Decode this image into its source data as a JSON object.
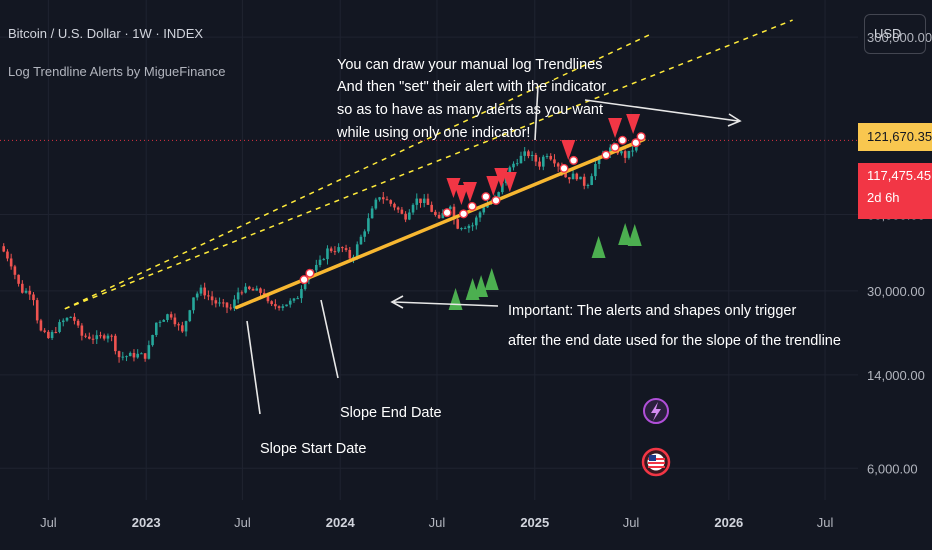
{
  "header": {
    "symbol_title": "Bitcoin / U.S. Dollar · 1W · INDEX",
    "indicator_name": "Log Trendline Alerts by MigueFinance",
    "currency": "USD"
  },
  "price_tags": {
    "high": "121,670.35",
    "last": "117,475.45",
    "countdown": "2d 6h"
  },
  "annotations": {
    "top_note": [
      "You can draw your manual log Trendlines",
      "And then \"set\" their alert with the indicator",
      "so as to have as many alerts as you want",
      "while using only one indicator!"
    ],
    "important_note": [
      "Important: The alerts and shapes only trigger",
      "after the end date used for the slope of the trendline"
    ],
    "slope_end": "Slope End Date",
    "slope_start": "Slope Start Date"
  },
  "colors": {
    "background": "#131722",
    "up_candle": "#26a69a",
    "down_candle": "#ef5350",
    "trendline": "#f7b731",
    "dashed_line": "#ffeb3b",
    "sell_marker": "#f23645",
    "buy_marker": "#4caf50",
    "price_line": "#f23645"
  },
  "chart_data": {
    "type": "candlestick",
    "title": "Bitcoin / U.S. Dollar · 1W · INDEX",
    "yscale": "log",
    "ylim": [
      4500,
      420000
    ],
    "xlim": [
      "2022-04-01",
      "2026-09-01"
    ],
    "y_ticks": [
      {
        "value": 300000,
        "label": "300,000.00"
      },
      {
        "value": 60000,
        "label": "60,000.00"
      },
      {
        "value": 30000,
        "label": "30,000.00"
      },
      {
        "value": 14000,
        "label": "14,000.00"
      },
      {
        "value": 6000,
        "label": "6,000.00"
      }
    ],
    "x_ticks": [
      {
        "date": "2022-07-01",
        "label": "Jul",
        "bold": false
      },
      {
        "date": "2023-01-01",
        "label": "2023",
        "bold": true
      },
      {
        "date": "2023-07-01",
        "label": "Jul",
        "bold": false
      },
      {
        "date": "2024-01-01",
        "label": "2024",
        "bold": true
      },
      {
        "date": "2024-07-01",
        "label": "Jul",
        "bold": false
      },
      {
        "date": "2025-01-01",
        "label": "2025",
        "bold": true
      },
      {
        "date": "2025-07-01",
        "label": "Jul",
        "bold": false
      },
      {
        "date": "2026-01-01",
        "label": "2026",
        "bold": true
      },
      {
        "date": "2026-07-01",
        "label": "Jul",
        "bold": false
      }
    ],
    "last_price": 117475.45,
    "high_price": 121670.35,
    "close_path": [
      [
        "2022-04-01",
        45000
      ],
      [
        "2022-04-20",
        39500
      ],
      [
        "2022-05-10",
        30000
      ],
      [
        "2022-06-01",
        29800
      ],
      [
        "2022-06-14",
        21000
      ],
      [
        "2022-07-01",
        19500
      ],
      [
        "2022-07-25",
        22500
      ],
      [
        "2022-08-15",
        24000
      ],
      [
        "2022-09-01",
        20000
      ],
      [
        "2022-10-01",
        19500
      ],
      [
        "2022-10-25",
        20500
      ],
      [
        "2022-11-10",
        16500
      ],
      [
        "2022-12-15",
        16800
      ],
      [
        "2023-01-01",
        16600
      ],
      [
        "2023-01-20",
        22500
      ],
      [
        "2023-02-15",
        24500
      ],
      [
        "2023-03-10",
        20500
      ],
      [
        "2023-03-30",
        28500
      ],
      [
        "2023-04-15",
        30300
      ],
      [
        "2023-05-10",
        27000
      ],
      [
        "2023-06-10",
        25500
      ],
      [
        "2023-06-25",
        30400
      ],
      [
        "2023-07-15",
        30200
      ],
      [
        "2023-08-10",
        29500
      ],
      [
        "2023-08-20",
        26000
      ],
      [
        "2023-09-15",
        26500
      ],
      [
        "2023-10-10",
        27500
      ],
      [
        "2023-10-28",
        34500
      ],
      [
        "2023-11-20",
        37500
      ],
      [
        "2023-12-08",
        43500
      ],
      [
        "2024-01-05",
        44000
      ],
      [
        "2024-01-22",
        40000
      ],
      [
        "2024-02-15",
        52000
      ],
      [
        "2024-03-05",
        65000
      ],
      [
        "2024-03-14",
        71500
      ],
      [
        "2024-04-15",
        64000
      ],
      [
        "2024-05-01",
        58000
      ],
      [
        "2024-05-20",
        69000
      ],
      [
        "2024-06-10",
        67000
      ],
      [
        "2024-07-05",
        56500
      ],
      [
        "2024-07-25",
        67500
      ],
      [
        "2024-08-05",
        54000
      ],
      [
        "2024-09-06",
        54500
      ],
      [
        "2024-09-28",
        65500
      ],
      [
        "2024-10-20",
        68500
      ],
      [
        "2024-11-12",
        89000
      ],
      [
        "2024-11-25",
        97000
      ],
      [
        "2024-12-17",
        105000
      ],
      [
        "2025-01-10",
        94500
      ],
      [
        "2025-01-22",
        105500
      ],
      [
        "2025-02-10",
        97000
      ],
      [
        "2025-03-01",
        84000
      ],
      [
        "2025-03-20",
        85500
      ],
      [
        "2025-04-08",
        77500
      ],
      [
        "2025-04-25",
        94500
      ],
      [
        "2025-05-20",
        109000
      ],
      [
        "2025-06-10",
        106000
      ],
      [
        "2025-06-22",
        101000
      ],
      [
        "2025-07-05",
        109000
      ],
      [
        "2025-07-14",
        121000
      ],
      [
        "2025-07-22",
        117475
      ]
    ],
    "trendline": {
      "start": [
        "2023-06-20",
        25800
      ],
      "end": [
        "2025-07-25",
        118500
      ]
    },
    "dashed_lines": [
      {
        "start": [
          "2022-08-01",
          25500
        ],
        "end": [
          "2026-05-01",
          350000
        ]
      },
      {
        "start": [
          "2022-08-01",
          25500
        ],
        "end": [
          "2025-08-10",
          310000
        ]
      }
    ],
    "sell_markers": [
      "2024-08-01",
      "2024-08-16",
      "2024-09-01",
      "2024-10-15",
      "2024-10-30",
      "2024-11-15",
      "2025-03-05",
      "2025-06-01",
      "2025-07-05"
    ],
    "buy_markers": [
      "2024-08-05",
      "2024-09-06",
      "2024-09-22",
      "2024-10-12",
      "2025-05-01",
      "2025-06-20",
      "2025-07-08"
    ]
  }
}
